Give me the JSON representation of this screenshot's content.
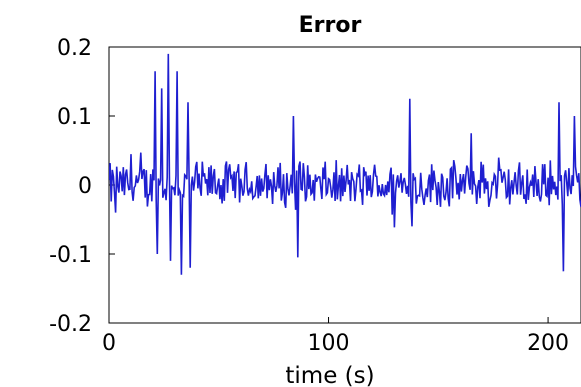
{
  "chart_data": {
    "type": "line",
    "title": "Error",
    "xlabel": "time (s)",
    "ylabel": "",
    "xlim": [
      0,
      215
    ],
    "ylim": [
      -0.2,
      0.2
    ],
    "x_ticks": [
      0,
      100,
      200
    ],
    "x_tick_labels": [
      "0",
      "100",
      "200"
    ],
    "y_ticks": [
      0.2,
      0.1,
      0,
      -0.1,
      -0.2
    ],
    "y_tick_labels": [
      "0.2",
      "0.1",
      "0",
      "-0.1",
      "-0.2"
    ],
    "grid": false,
    "series": [
      {
        "color": "#1f1fd0",
        "x_step": 0.5,
        "noise_amplitude": 0.028,
        "spikes": [
          {
            "x": 21,
            "y": 0.165
          },
          {
            "x": 22,
            "y": -0.1
          },
          {
            "x": 24,
            "y": 0.14
          },
          {
            "x": 27,
            "y": 0.19
          },
          {
            "x": 28,
            "y": -0.11
          },
          {
            "x": 31,
            "y": 0.165
          },
          {
            "x": 33,
            "y": -0.13
          },
          {
            "x": 36,
            "y": 0.12
          },
          {
            "x": 37,
            "y": -0.12
          },
          {
            "x": 84,
            "y": 0.1
          },
          {
            "x": 86,
            "y": -0.105
          },
          {
            "x": 137,
            "y": 0.125
          },
          {
            "x": 138,
            "y": -0.06
          },
          {
            "x": 165,
            "y": 0.075
          },
          {
            "x": 205,
            "y": 0.12
          },
          {
            "x": 207,
            "y": -0.125
          },
          {
            "x": 212,
            "y": 0.1
          },
          {
            "x": 3,
            "y": -0.04
          }
        ]
      }
    ]
  }
}
